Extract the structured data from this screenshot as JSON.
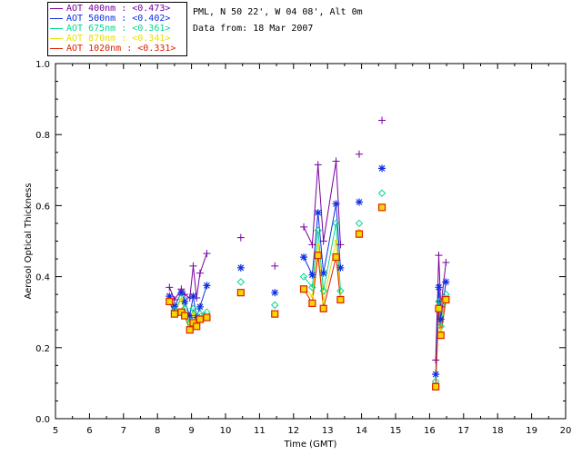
{
  "info": {
    "location": "PML, N 50 22', W 04 08', Alt 0m",
    "date_line": "Data from: 18 Mar 2007"
  },
  "chart_data": {
    "type": "scatter",
    "xlabel": "Time (GMT)",
    "ylabel": "Aerosol Optical Thickness",
    "xlim": [
      5,
      20
    ],
    "ylim": [
      0.0,
      1.0
    ],
    "xticks": [
      "5",
      "6",
      "7",
      "8",
      "9",
      "10",
      "11",
      "12",
      "13",
      "14",
      "15",
      "16",
      "17",
      "18",
      "19",
      "20"
    ],
    "yticks": [
      "0.0",
      "0.2",
      "0.4",
      "0.6",
      "0.8",
      "1.0"
    ],
    "legend_position": "top-left-outside",
    "series": [
      {
        "name": "AOT  400nm : <0.473>",
        "color": "#7a00a0",
        "marker": "plus",
        "x": [
          8.35,
          8.5,
          8.7,
          8.8,
          8.95,
          9.05,
          9.15,
          9.25,
          9.45,
          10.45,
          11.45,
          12.3,
          12.55,
          12.72,
          12.88,
          13.25,
          13.38,
          13.93,
          14.6,
          16.18,
          16.27,
          16.33,
          16.48
        ],
        "y": [
          0.37,
          0.335,
          0.365,
          0.35,
          0.34,
          0.43,
          0.34,
          0.41,
          0.465,
          0.51,
          0.43,
          0.54,
          0.49,
          0.715,
          0.5,
          0.725,
          0.49,
          0.745,
          0.84,
          0.165,
          0.46,
          0.315,
          0.44
        ]
      },
      {
        "name": "AOT  500nm : <0.402>",
        "color": "#1030e0",
        "marker": "star",
        "x": [
          8.35,
          8.5,
          8.7,
          8.8,
          8.95,
          9.05,
          9.15,
          9.25,
          9.45,
          10.45,
          11.45,
          12.3,
          12.55,
          12.72,
          12.88,
          13.25,
          13.38,
          13.93,
          14.6,
          16.18,
          16.27,
          16.33,
          16.48
        ],
        "y": [
          0.345,
          0.315,
          0.355,
          0.33,
          0.29,
          0.345,
          0.285,
          0.315,
          0.375,
          0.425,
          0.355,
          0.455,
          0.405,
          0.58,
          0.41,
          0.605,
          0.425,
          0.61,
          0.705,
          0.125,
          0.37,
          0.28,
          0.385
        ]
      },
      {
        "name": "AOT  675nm : <0.361>",
        "color": "#00d890",
        "marker": "diamond",
        "x": [
          8.35,
          8.5,
          8.7,
          8.8,
          8.95,
          9.05,
          9.15,
          9.25,
          9.45,
          10.45,
          11.45,
          12.3,
          12.55,
          12.72,
          12.88,
          13.25,
          13.38,
          13.93,
          14.6,
          16.18,
          16.27,
          16.33,
          16.48
        ],
        "y": [
          0.33,
          0.305,
          0.34,
          0.31,
          0.27,
          0.31,
          0.275,
          0.295,
          0.3,
          0.385,
          0.32,
          0.4,
          0.37,
          0.53,
          0.36,
          0.55,
          0.36,
          0.55,
          0.635,
          0.105,
          0.33,
          0.26,
          0.35
        ]
      },
      {
        "name": "AOT  870nm : <0.341>",
        "color": "#e8e000",
        "marker": "dot",
        "x": [
          8.35,
          8.5,
          8.7,
          8.8,
          8.95,
          9.05,
          9.15,
          9.25,
          9.45,
          10.45,
          11.45,
          12.3,
          12.55,
          12.72,
          12.88,
          13.25,
          13.38,
          13.93,
          14.6,
          16.18,
          16.27,
          16.33,
          16.48
        ],
        "y": [
          0.325,
          0.3,
          0.335,
          0.3,
          0.26,
          0.295,
          0.27,
          0.285,
          0.29,
          0.36,
          0.3,
          0.37,
          0.345,
          0.49,
          0.33,
          0.5,
          0.345,
          0.53,
          0.6,
          0.095,
          0.315,
          0.25,
          0.34
        ]
      },
      {
        "name": "AOT 1020nm : <0.331>",
        "color": "#e02000",
        "marker": "square",
        "x": [
          8.35,
          8.5,
          8.7,
          8.8,
          8.95,
          9.05,
          9.15,
          9.25,
          9.45,
          10.45,
          11.45,
          12.3,
          12.55,
          12.72,
          12.88,
          13.25,
          13.38,
          13.93,
          14.6,
          16.18,
          16.27,
          16.33,
          16.48
        ],
        "y": [
          0.33,
          0.295,
          0.3,
          0.29,
          0.25,
          0.27,
          0.26,
          0.28,
          0.285,
          0.355,
          0.295,
          0.365,
          0.325,
          0.46,
          0.31,
          0.455,
          0.335,
          0.52,
          0.595,
          0.09,
          0.31,
          0.235,
          0.335
        ]
      }
    ],
    "line_groups": [
      [
        0,
        8
      ],
      [
        11,
        16
      ],
      [
        19,
        22
      ]
    ],
    "grid": false
  }
}
